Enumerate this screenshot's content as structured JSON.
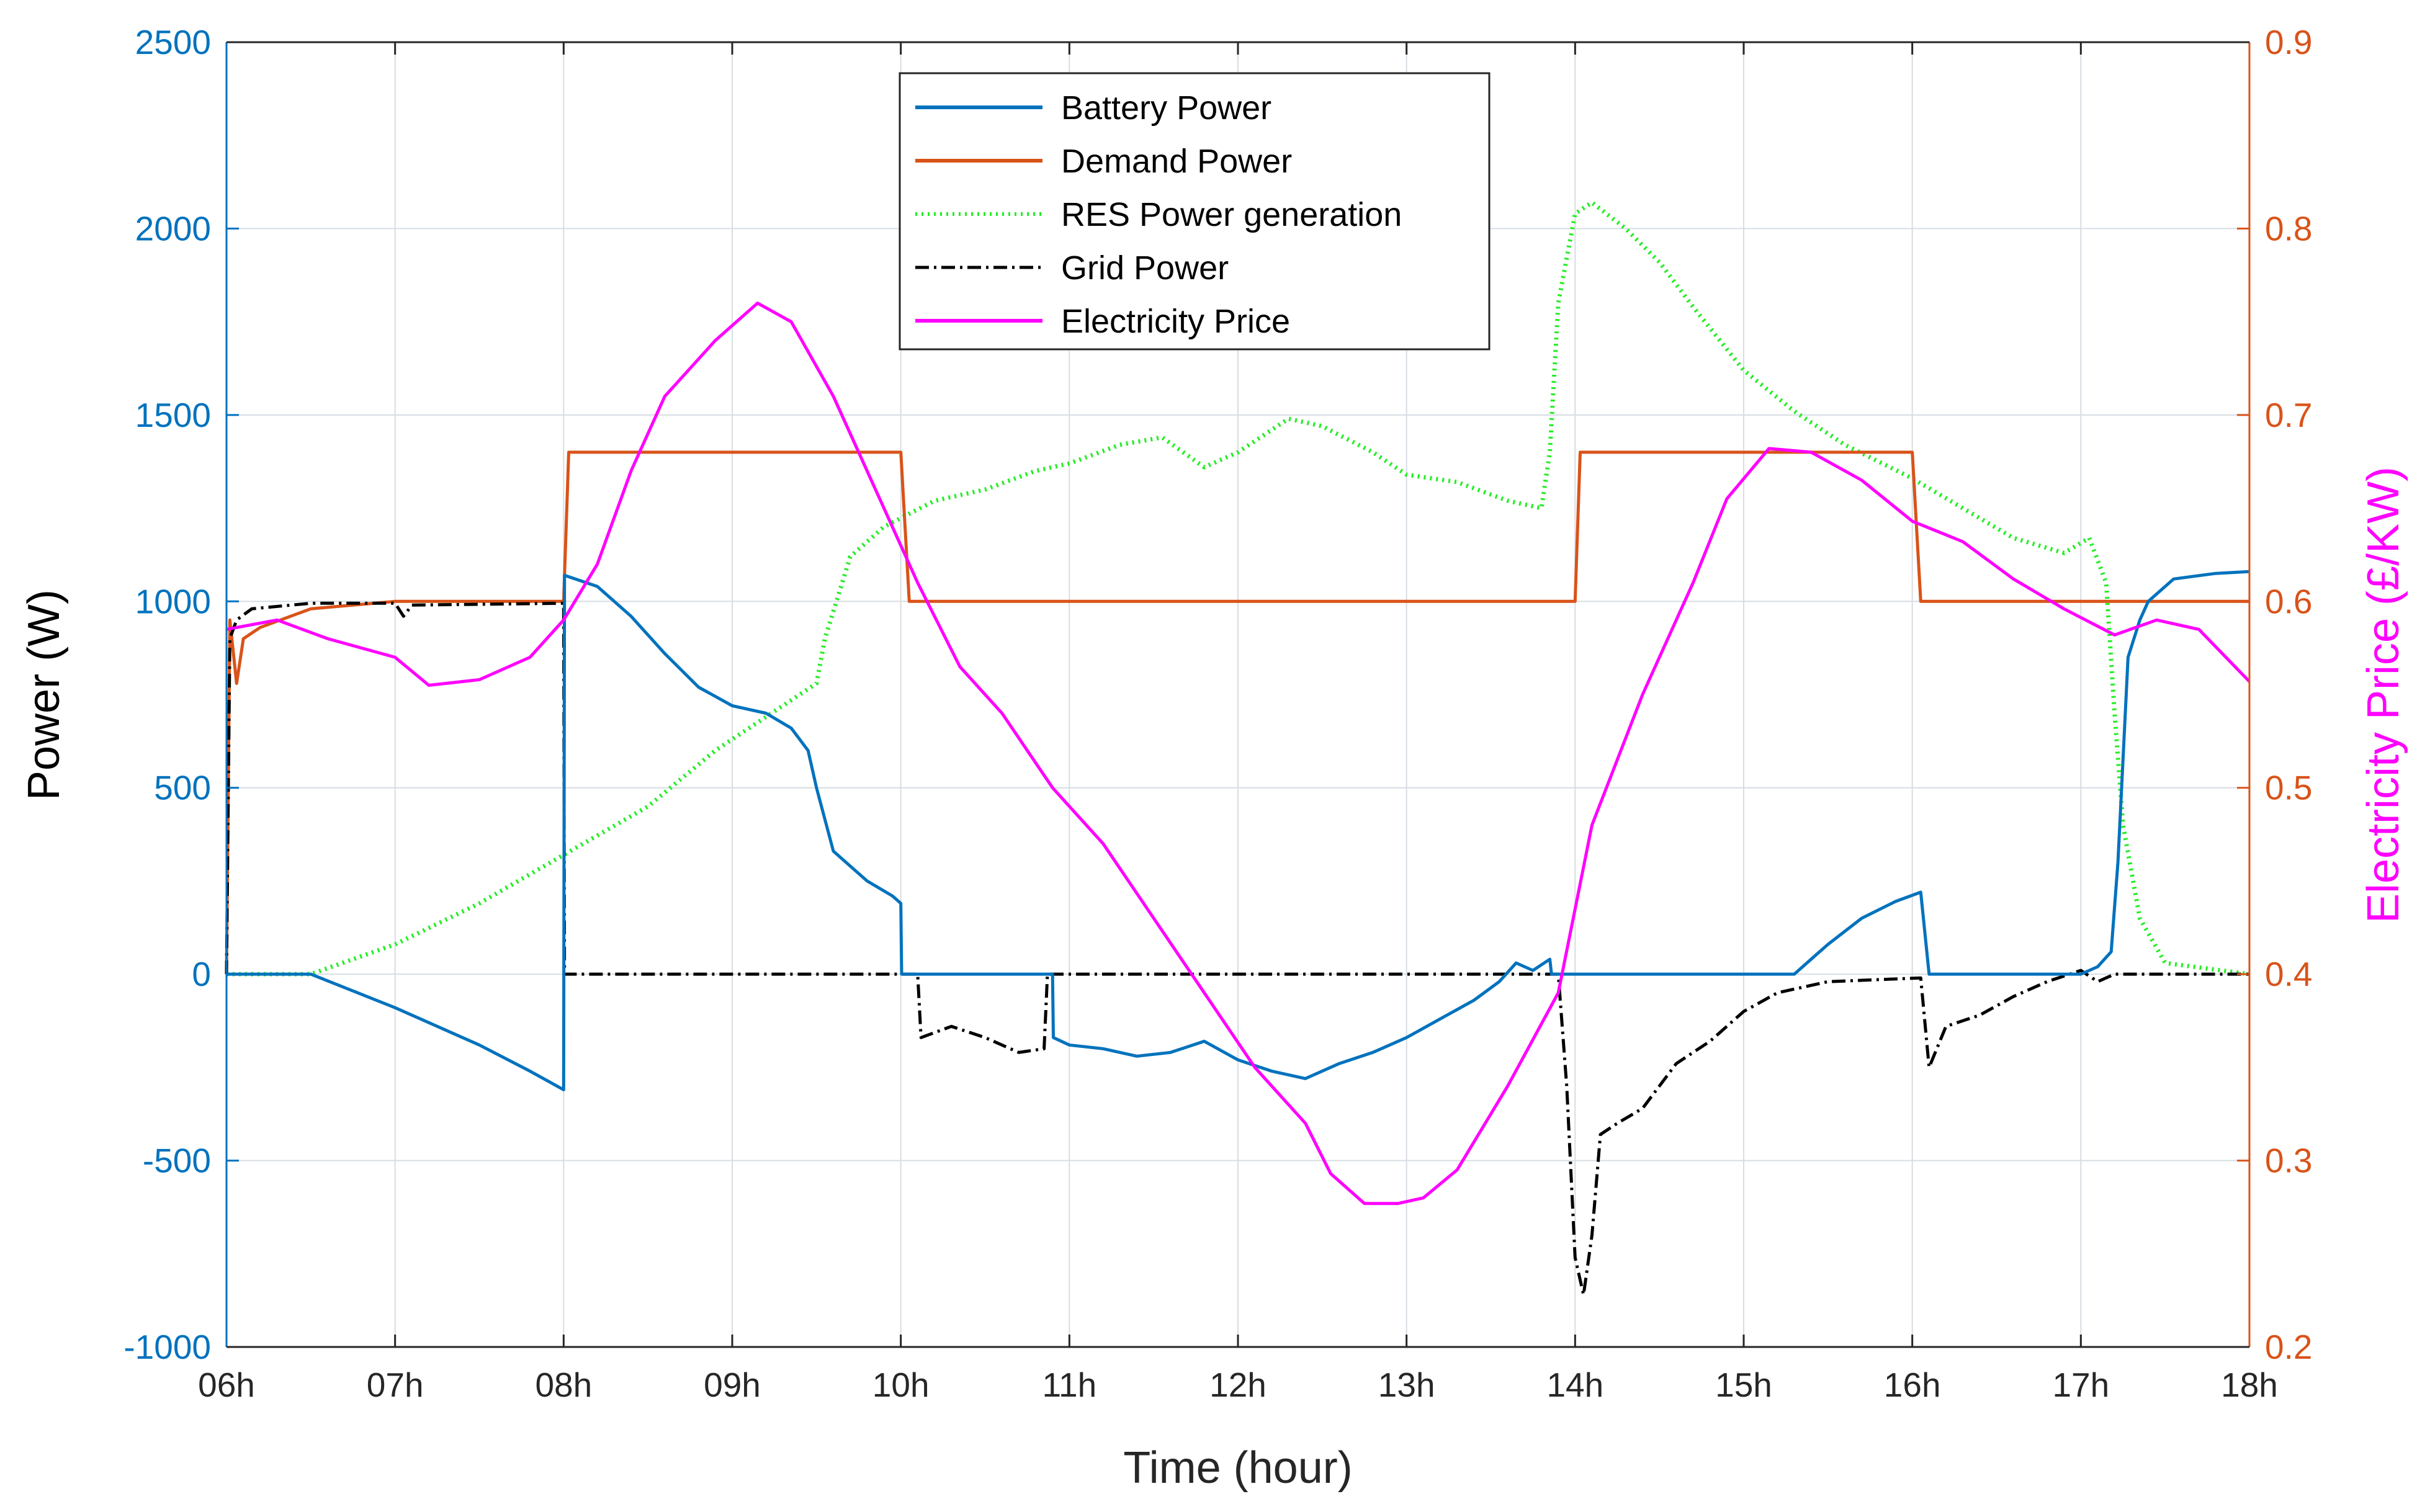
{
  "chart_data": {
    "type": "line",
    "title": "",
    "xlabel": "Time (hour)",
    "ylabel_left": "Power (W)",
    "ylabel_right": "Electricity Price (£/KW)",
    "x_ticks": [
      "06h",
      "07h",
      "08h",
      "09h",
      "10h",
      "11h",
      "12h",
      "13h",
      "14h",
      "15h",
      "16h",
      "17h",
      "18h"
    ],
    "x_range": [
      6,
      18
    ],
    "y_left_range": [
      -1000,
      2500
    ],
    "y_left_ticks": [
      "-1000",
      "-500",
      "0",
      "500",
      "1000",
      "1500",
      "2000",
      "2500"
    ],
    "y_right_range": [
      0.2,
      0.9
    ],
    "y_right_ticks": [
      "0.2",
      "0.3",
      "0.4",
      "0.5",
      "0.6",
      "0.7",
      "0.8",
      "0.9"
    ],
    "grid": true,
    "legend_position": "top-center",
    "colors": {
      "battery": "#0072BD",
      "demand": "#D95319",
      "res": "#22ee22",
      "grid": "#000000",
      "price": "#ff00ff",
      "left_axis": "#0072BD",
      "right_axis": "#D95319",
      "right_label": "#ff00ff"
    },
    "series": [
      {
        "name": "Battery  Power",
        "axis": "left",
        "style": "solid",
        "color": "#0072BD",
        "points": [
          [
            6.0,
            0
          ],
          [
            6.5,
            0
          ],
          [
            7.0,
            -90
          ],
          [
            7.5,
            -190
          ],
          [
            7.8,
            -260
          ],
          [
            8.0,
            -310
          ],
          [
            8.005,
            1070
          ],
          [
            8.2,
            1040
          ],
          [
            8.4,
            960
          ],
          [
            8.6,
            860
          ],
          [
            8.8,
            770
          ],
          [
            9.0,
            720
          ],
          [
            9.2,
            700
          ],
          [
            9.35,
            660
          ],
          [
            9.45,
            600
          ],
          [
            9.5,
            500
          ],
          [
            9.6,
            330
          ],
          [
            9.8,
            250
          ],
          [
            9.95,
            210
          ],
          [
            10.0,
            190
          ],
          [
            10.005,
            0
          ],
          [
            10.9,
            0
          ],
          [
            10.905,
            -170
          ],
          [
            11.0,
            -190
          ],
          [
            11.2,
            -200
          ],
          [
            11.4,
            -220
          ],
          [
            11.6,
            -210
          ],
          [
            11.8,
            -180
          ],
          [
            12.0,
            -230
          ],
          [
            12.2,
            -260
          ],
          [
            12.4,
            -280
          ],
          [
            12.6,
            -240
          ],
          [
            12.8,
            -210
          ],
          [
            13.0,
            -170
          ],
          [
            13.2,
            -120
          ],
          [
            13.4,
            -70
          ],
          [
            13.55,
            -20
          ],
          [
            13.65,
            30
          ],
          [
            13.75,
            10
          ],
          [
            13.85,
            40
          ],
          [
            13.86,
            0
          ],
          [
            15.0,
            0
          ],
          [
            15.3,
            0
          ],
          [
            15.5,
            80
          ],
          [
            15.7,
            150
          ],
          [
            15.9,
            195
          ],
          [
            16.05,
            220
          ],
          [
            16.1,
            0
          ],
          [
            17.0,
            0
          ],
          [
            17.1,
            20
          ],
          [
            17.18,
            60
          ],
          [
            17.22,
            300
          ],
          [
            17.28,
            850
          ],
          [
            17.35,
            950
          ],
          [
            17.4,
            1000
          ],
          [
            17.55,
            1060
          ],
          [
            17.8,
            1075
          ],
          [
            18.0,
            1080
          ]
        ]
      },
      {
        "name": "Demand Power",
        "axis": "left",
        "style": "solid",
        "color": "#D95319",
        "points": [
          [
            6.0,
            0
          ],
          [
            6.02,
            950
          ],
          [
            6.06,
            780
          ],
          [
            6.1,
            900
          ],
          [
            6.2,
            930
          ],
          [
            6.5,
            980
          ],
          [
            7.0,
            1000
          ],
          [
            8.0,
            1000
          ],
          [
            8.03,
            1400
          ],
          [
            10.0,
            1400
          ],
          [
            10.05,
            1000
          ],
          [
            14.0,
            1000
          ],
          [
            14.03,
            1400
          ],
          [
            16.0,
            1400
          ],
          [
            16.05,
            1000
          ],
          [
            18.0,
            1000
          ]
        ]
      },
      {
        "name": "RES Power generation",
        "axis": "left",
        "style": "dotted",
        "color": "#22ee22",
        "points": [
          [
            6.0,
            0
          ],
          [
            6.5,
            0
          ],
          [
            7.0,
            80
          ],
          [
            7.5,
            190
          ],
          [
            8.0,
            320
          ],
          [
            8.5,
            450
          ],
          [
            8.9,
            600
          ],
          [
            9.2,
            690
          ],
          [
            9.5,
            780
          ],
          [
            9.55,
            900
          ],
          [
            9.7,
            1120
          ],
          [
            9.9,
            1200
          ],
          [
            10.2,
            1270
          ],
          [
            10.5,
            1300
          ],
          [
            10.8,
            1350
          ],
          [
            11.0,
            1370
          ],
          [
            11.3,
            1420
          ],
          [
            11.55,
            1440
          ],
          [
            11.8,
            1360
          ],
          [
            12.0,
            1400
          ],
          [
            12.3,
            1490
          ],
          [
            12.5,
            1470
          ],
          [
            12.8,
            1400
          ],
          [
            13.0,
            1340
          ],
          [
            13.3,
            1320
          ],
          [
            13.6,
            1270
          ],
          [
            13.8,
            1250
          ],
          [
            13.85,
            1400
          ],
          [
            13.9,
            1800
          ],
          [
            14.0,
            2040
          ],
          [
            14.1,
            2070
          ],
          [
            14.3,
            2000
          ],
          [
            14.5,
            1910
          ],
          [
            14.7,
            1790
          ],
          [
            15.0,
            1620
          ],
          [
            15.3,
            1510
          ],
          [
            15.6,
            1420
          ],
          [
            16.0,
            1330
          ],
          [
            16.3,
            1250
          ],
          [
            16.6,
            1170
          ],
          [
            16.9,
            1130
          ],
          [
            17.05,
            1170
          ],
          [
            17.15,
            1050
          ],
          [
            17.2,
            700
          ],
          [
            17.25,
            400
          ],
          [
            17.35,
            150
          ],
          [
            17.5,
            30
          ],
          [
            18.0,
            0
          ]
        ]
      },
      {
        "name": "Grid Power",
        "axis": "left",
        "style": "dashdot",
        "color": "#000000",
        "points": [
          [
            6.0,
            0
          ],
          [
            6.02,
            900
          ],
          [
            6.06,
            950
          ],
          [
            6.15,
            980
          ],
          [
            6.5,
            995
          ],
          [
            7.0,
            995
          ],
          [
            7.05,
            960
          ],
          [
            7.1,
            990
          ],
          [
            8.0,
            995
          ],
          [
            8.005,
            0
          ],
          [
            10.1,
            0
          ],
          [
            10.12,
            -170
          ],
          [
            10.3,
            -140
          ],
          [
            10.5,
            -170
          ],
          [
            10.7,
            -210
          ],
          [
            10.85,
            -200
          ],
          [
            10.87,
            0
          ],
          [
            13.9,
            0
          ],
          [
            13.95,
            -300
          ],
          [
            14.0,
            -760
          ],
          [
            14.05,
            -860
          ],
          [
            14.1,
            -700
          ],
          [
            14.15,
            -430
          ],
          [
            14.25,
            -400
          ],
          [
            14.4,
            -360
          ],
          [
            14.6,
            -240
          ],
          [
            14.8,
            -180
          ],
          [
            15.0,
            -100
          ],
          [
            15.2,
            -50
          ],
          [
            15.5,
            -20
          ],
          [
            16.05,
            -10
          ],
          [
            16.1,
            -250
          ],
          [
            16.2,
            -140
          ],
          [
            16.4,
            -110
          ],
          [
            16.6,
            -60
          ],
          [
            16.8,
            -20
          ],
          [
            17.0,
            10
          ],
          [
            17.1,
            -20
          ],
          [
            17.2,
            0
          ],
          [
            18.0,
            0
          ]
        ]
      },
      {
        "name": "Electricity Price",
        "axis": "right",
        "style": "solid",
        "color": "#ff00ff",
        "points": [
          [
            6.0,
            0.585
          ],
          [
            6.3,
            0.59
          ],
          [
            6.6,
            0.58
          ],
          [
            7.0,
            0.57
          ],
          [
            7.2,
            0.555
          ],
          [
            7.5,
            0.558
          ],
          [
            7.8,
            0.57
          ],
          [
            8.0,
            0.59
          ],
          [
            8.2,
            0.62
          ],
          [
            8.4,
            0.67
          ],
          [
            8.6,
            0.71
          ],
          [
            8.9,
            0.74
          ],
          [
            9.15,
            0.76
          ],
          [
            9.35,
            0.75
          ],
          [
            9.6,
            0.71
          ],
          [
            9.85,
            0.66
          ],
          [
            10.1,
            0.61
          ],
          [
            10.35,
            0.565
          ],
          [
            10.6,
            0.54
          ],
          [
            10.9,
            0.5
          ],
          [
            11.2,
            0.47
          ],
          [
            11.5,
            0.43
          ],
          [
            11.8,
            0.39
          ],
          [
            12.1,
            0.35
          ],
          [
            12.4,
            0.32
          ],
          [
            12.55,
            0.293
          ],
          [
            12.75,
            0.277
          ],
          [
            12.95,
            0.277
          ],
          [
            13.1,
            0.28
          ],
          [
            13.3,
            0.295
          ],
          [
            13.6,
            0.34
          ],
          [
            13.9,
            0.39
          ],
          [
            14.1,
            0.48
          ],
          [
            14.4,
            0.55
          ],
          [
            14.7,
            0.61
          ],
          [
            14.9,
            0.655
          ],
          [
            15.15,
            0.682
          ],
          [
            15.4,
            0.68
          ],
          [
            15.7,
            0.665
          ],
          [
            16.0,
            0.643
          ],
          [
            16.3,
            0.632
          ],
          [
            16.6,
            0.612
          ],
          [
            16.9,
            0.596
          ],
          [
            17.2,
            0.582
          ],
          [
            17.45,
            0.59
          ],
          [
            17.7,
            0.585
          ],
          [
            18.0,
            0.557
          ]
        ]
      }
    ]
  }
}
